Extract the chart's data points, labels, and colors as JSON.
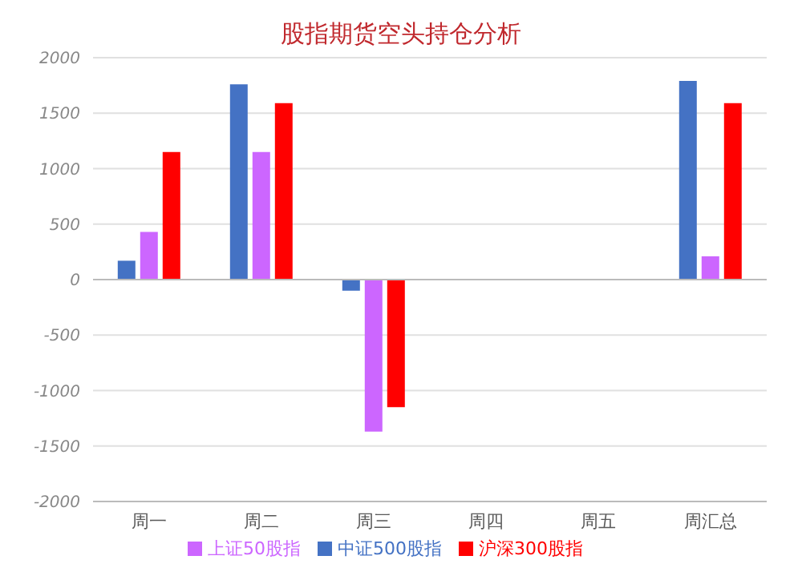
{
  "chart_data": {
    "type": "bar",
    "title": "股指期货空头持仓分析",
    "categories": [
      "周一",
      "周二",
      "周三",
      "周四",
      "周五",
      "周汇总"
    ],
    "series": [
      {
        "name": "中证500股指",
        "color": "#4472c4",
        "values": [
          170,
          1760,
          -100,
          0,
          0,
          1790
        ]
      },
      {
        "name": "上证50股指",
        "color": "#cc66ff",
        "values": [
          430,
          1150,
          -1370,
          0,
          0,
          210
        ]
      },
      {
        "name": "沪深300股指",
        "color": "#ff0000",
        "values": [
          1150,
          1590,
          -1150,
          0,
          0,
          1590
        ]
      }
    ],
    "ylim": [
      -2000,
      2000
    ],
    "yticks": [
      -2000,
      -1500,
      -1000,
      -500,
      0,
      500,
      1000,
      1500,
      2000
    ],
    "grid": "y",
    "legend": "bottom"
  }
}
